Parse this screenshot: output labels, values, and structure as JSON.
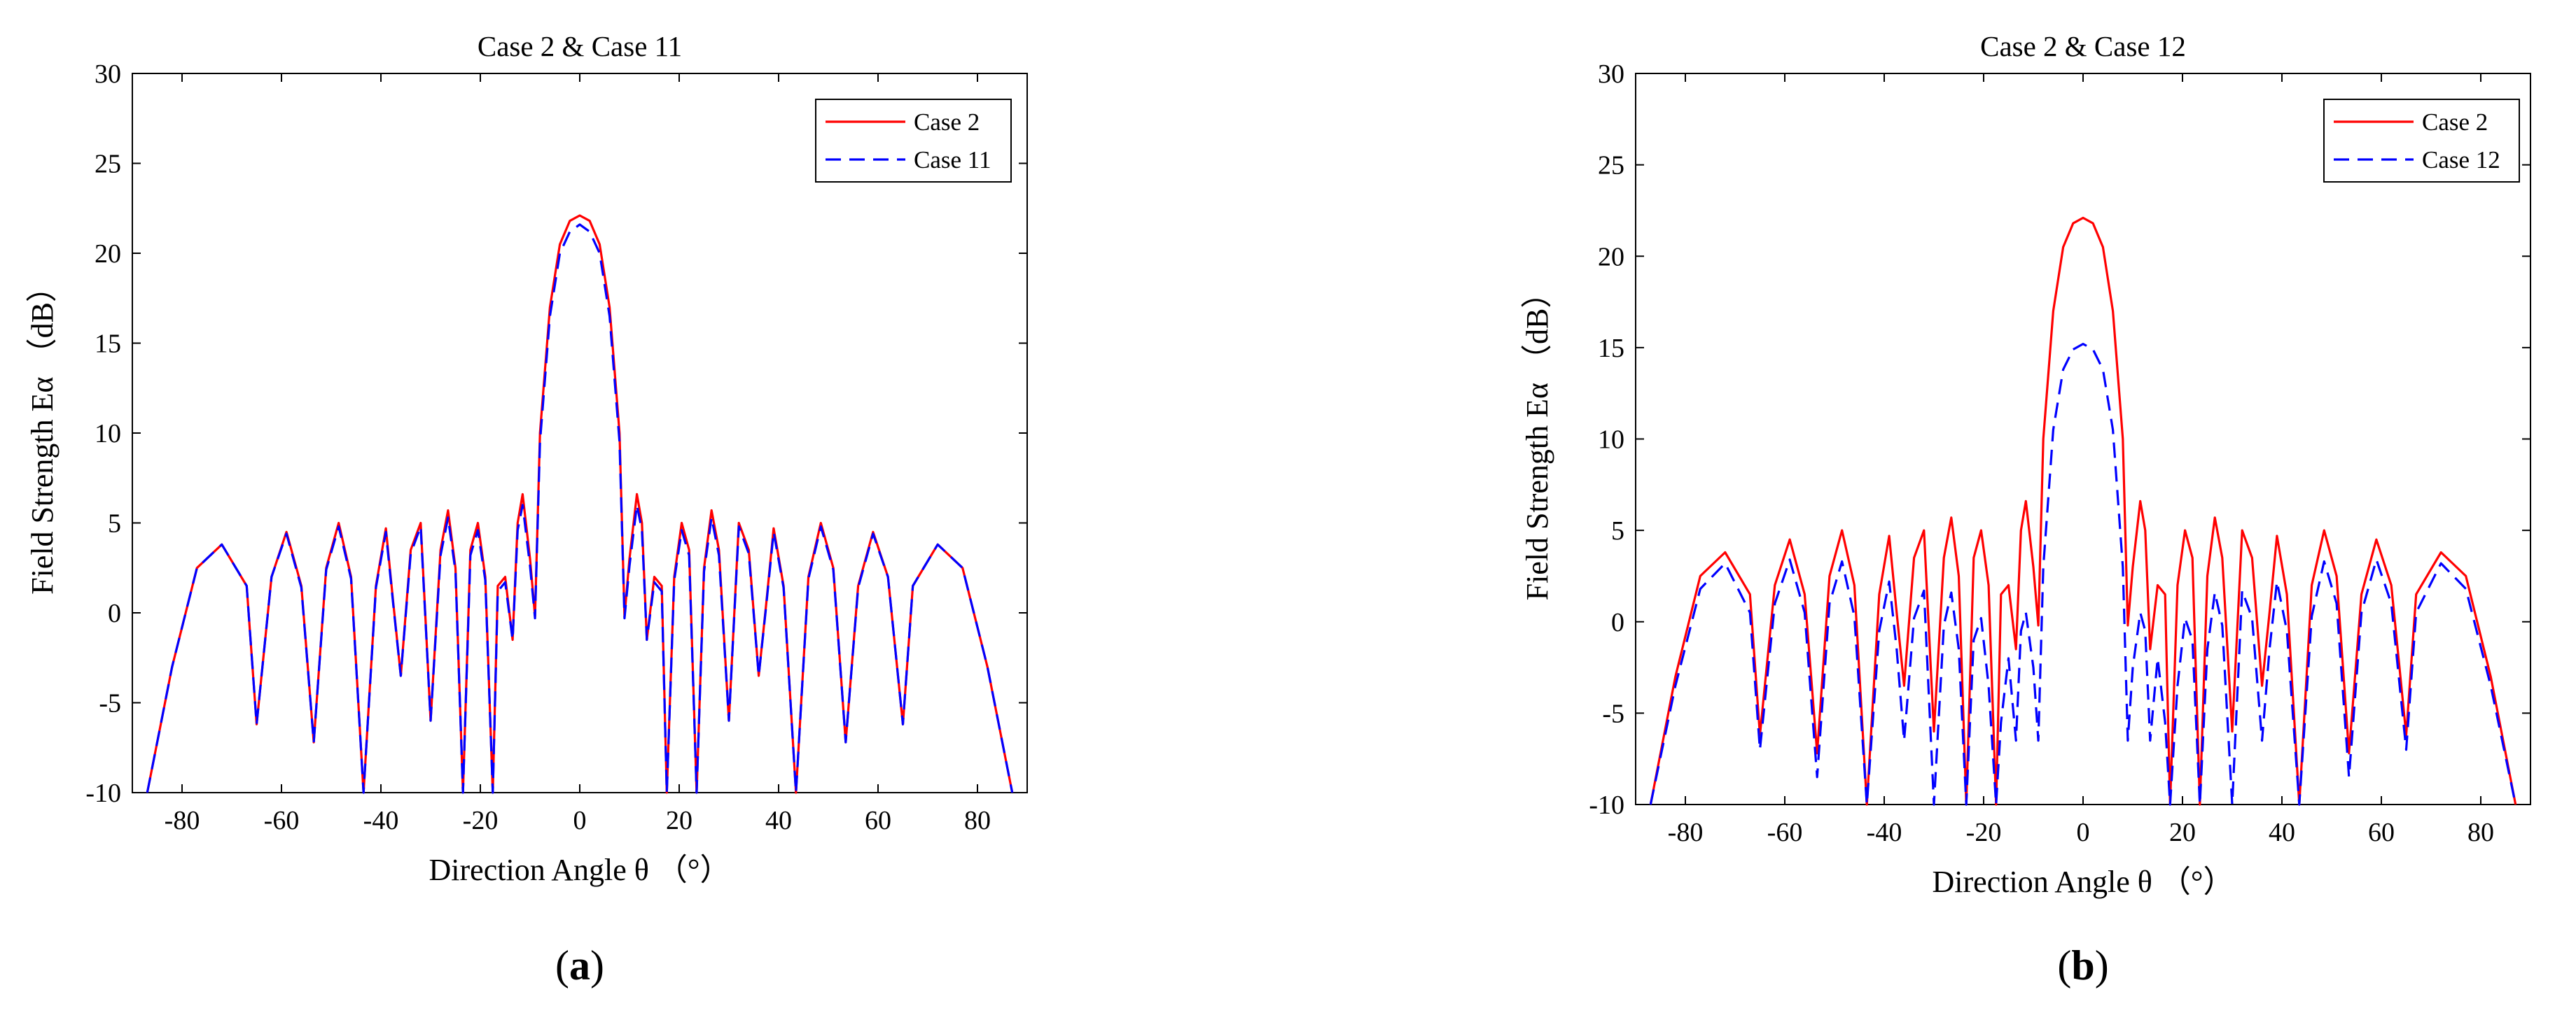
{
  "chart_data": [
    {
      "type": "line",
      "panel_label": "a",
      "title": "Case 2 & Case 11",
      "xlabel": "Direction Angle θ （°）",
      "ylabel": "Field Strength Eα （dB）",
      "xlim": [
        -90,
        90
      ],
      "ylim": [
        -10,
        30
      ],
      "xticks": [
        -80,
        -60,
        -40,
        -20,
        0,
        20,
        40,
        60,
        80
      ],
      "yticks": [
        -10,
        -5,
        0,
        5,
        10,
        15,
        20,
        25,
        30
      ],
      "grid": false,
      "legend_position": "top-right",
      "series": [
        {
          "name": "Case 2",
          "color": "#ff0000",
          "style": "solid",
          "x": [
            -87,
            -82,
            -77,
            -72,
            -67,
            -65,
            -62,
            -59,
            -56,
            -53.5,
            -51,
            -48.5,
            -46,
            -43.5,
            -41,
            -39,
            -37.5,
            -36,
            -34,
            -32,
            -30,
            -28,
            -26.5,
            -25,
            -23.5,
            -22,
            -20.5,
            -19,
            -17.5,
            -16.5,
            -15,
            -13.5,
            -12.5,
            -11.5,
            -10,
            -9,
            -8,
            -6,
            -4,
            -2,
            0,
            2,
            4,
            6,
            8,
            9,
            10,
            11.5,
            12.5,
            13.5,
            15,
            16.5,
            17.5,
            19,
            20.5,
            22,
            23.5,
            25,
            26.5,
            28,
            30,
            32,
            34,
            36,
            37.5,
            39,
            41,
            43.5,
            46,
            48.5,
            51,
            53.5,
            56,
            59,
            62,
            65,
            67,
            72,
            77,
            82,
            87
          ],
          "y": [
            -10,
            -3,
            2.5,
            3.8,
            1.5,
            -6.2,
            2.0,
            4.5,
            1.5,
            -7.2,
            2.5,
            5.0,
            2.0,
            -10,
            1.5,
            4.7,
            0.5,
            -3.5,
            3.5,
            5.0,
            -6.0,
            3.5,
            5.7,
            2.5,
            -10,
            3.5,
            5.0,
            2.0,
            -10,
            1.5,
            2.0,
            -1.5,
            5.0,
            6.6,
            3.0,
            -0.2,
            10,
            17,
            20.5,
            21.8,
            22.1,
            21.8,
            20.5,
            17,
            10,
            -0.2,
            3.0,
            6.6,
            5.0,
            -1.5,
            2.0,
            1.5,
            -10,
            2.0,
            5.0,
            3.5,
            -10,
            2.5,
            5.7,
            3.5,
            -6.0,
            5.0,
            3.5,
            -3.5,
            0.5,
            4.7,
            1.5,
            -10,
            2.0,
            5.0,
            2.5,
            -7.2,
            1.5,
            4.5,
            2.0,
            -6.2,
            1.5,
            3.8,
            2.5,
            -3,
            -10
          ]
        },
        {
          "name": "Case 11",
          "color": "#0000ff",
          "style": "dashed",
          "x": [
            -87,
            -82,
            -77,
            -72,
            -67,
            -65,
            -62,
            -59,
            -56,
            -53.5,
            -51,
            -48.5,
            -46,
            -43.5,
            -41,
            -39,
            -37.5,
            -36,
            -34,
            -32,
            -30,
            -28,
            -26.5,
            -25,
            -23.5,
            -22,
            -20.5,
            -19,
            -17.5,
            -16.5,
            -15,
            -13.5,
            -12.5,
            -11.5,
            -10,
            -9,
            -8,
            -6,
            -4,
            -2,
            0,
            2,
            4,
            6,
            8,
            9,
            10,
            11.5,
            12.5,
            13.5,
            15,
            16.5,
            17.5,
            19,
            20.5,
            22,
            23.5,
            25,
            26.5,
            28,
            30,
            32,
            34,
            36,
            37.5,
            39,
            41,
            43.5,
            46,
            48.5,
            51,
            53.5,
            56,
            59,
            62,
            65,
            67,
            72,
            77,
            82,
            87
          ],
          "y": [
            -10,
            -3,
            2.5,
            3.8,
            1.5,
            -6.2,
            2.0,
            4.4,
            1.4,
            -7.2,
            2.4,
            4.8,
            1.9,
            -10,
            1.4,
            4.5,
            0.4,
            -3.5,
            3.3,
            4.8,
            -6.0,
            3.2,
            5.3,
            2.3,
            -10,
            3.2,
            4.6,
            1.8,
            -10,
            1.2,
            1.7,
            -1.5,
            4.6,
            6.0,
            2.6,
            -0.3,
            9.5,
            16.5,
            20.0,
            21.2,
            21.6,
            21.2,
            20.0,
            16.5,
            9.5,
            -0.3,
            2.6,
            6.0,
            4.6,
            -1.5,
            1.7,
            1.2,
            -10,
            1.8,
            4.6,
            3.2,
            -10,
            2.3,
            5.3,
            3.2,
            -6.0,
            4.8,
            3.3,
            -3.5,
            0.4,
            4.5,
            1.4,
            -10,
            1.9,
            4.8,
            2.4,
            -7.2,
            1.4,
            4.4,
            2.0,
            -6.2,
            1.5,
            3.8,
            2.5,
            -3,
            -10
          ]
        }
      ]
    },
    {
      "type": "line",
      "panel_label": "b",
      "title": "Case 2 & Case 12",
      "xlabel": "Direction Angle θ （°）",
      "ylabel": "Field Strength Eα （dB）",
      "xlim": [
        -90,
        90
      ],
      "ylim": [
        -10,
        30
      ],
      "xticks": [
        -80,
        -60,
        -40,
        -20,
        0,
        20,
        40,
        60,
        80
      ],
      "yticks": [
        -10,
        -5,
        0,
        5,
        10,
        15,
        20,
        25,
        30
      ],
      "grid": false,
      "legend_position": "top-right",
      "series": [
        {
          "name": "Case 2",
          "color": "#ff0000",
          "style": "solid",
          "x": [
            -87,
            -82,
            -77,
            -72,
            -67,
            -65,
            -62,
            -59,
            -56,
            -53.5,
            -51,
            -48.5,
            -46,
            -43.5,
            -41,
            -39,
            -37.5,
            -36,
            -34,
            -32,
            -30,
            -28,
            -26.5,
            -25,
            -23.5,
            -22,
            -20.5,
            -19,
            -17.5,
            -16.5,
            -15,
            -13.5,
            -12.5,
            -11.5,
            -10,
            -9,
            -8,
            -6,
            -4,
            -2,
            0,
            2,
            4,
            6,
            8,
            9,
            10,
            11.5,
            12.5,
            13.5,
            15,
            16.5,
            17.5,
            19,
            20.5,
            22,
            23.5,
            25,
            26.5,
            28,
            30,
            32,
            34,
            36,
            37.5,
            39,
            41,
            43.5,
            46,
            48.5,
            51,
            53.5,
            56,
            59,
            62,
            65,
            67,
            72,
            77,
            82,
            87
          ],
          "y": [
            -10,
            -3,
            2.5,
            3.8,
            1.5,
            -6.2,
            2.0,
            4.5,
            1.5,
            -7.2,
            2.5,
            5.0,
            2.0,
            -10,
            1.5,
            4.7,
            0.5,
            -3.5,
            3.5,
            5.0,
            -6.0,
            3.5,
            5.7,
            2.5,
            -10,
            3.5,
            5.0,
            2.0,
            -10,
            1.5,
            2.0,
            -1.5,
            5.0,
            6.6,
            3.0,
            -0.2,
            10,
            17,
            20.5,
            21.8,
            22.1,
            21.8,
            20.5,
            17,
            10,
            -0.2,
            3.0,
            6.6,
            5.0,
            -1.5,
            2.0,
            1.5,
            -10,
            2.0,
            5.0,
            3.5,
            -10,
            2.5,
            5.7,
            3.5,
            -6.0,
            5.0,
            3.5,
            -3.5,
            0.5,
            4.7,
            1.5,
            -10,
            2.0,
            5.0,
            2.5,
            -7.2,
            1.5,
            4.5,
            2.0,
            -6.2,
            1.5,
            3.8,
            2.5,
            -3,
            -10
          ]
        },
        {
          "name": "Case 12",
          "color": "#0000ff",
          "style": "dashed",
          "x": [
            -87,
            -82,
            -77,
            -72,
            -67,
            -65,
            -62,
            -59,
            -56,
            -53.5,
            -51,
            -48.5,
            -46,
            -43.5,
            -41,
            -39,
            -37.5,
            -36,
            -34,
            -32,
            -30,
            -28,
            -26.5,
            -25,
            -23.5,
            -22,
            -20.5,
            -19,
            -17.5,
            -16.5,
            -15,
            -13.5,
            -12.5,
            -11.5,
            -10,
            -9,
            -8,
            -6,
            -4,
            -2,
            0,
            2,
            4,
            6,
            8,
            9,
            10,
            11.5,
            12.5,
            13.5,
            15,
            16.5,
            17.5,
            19,
            20.5,
            22,
            23.5,
            25,
            26.5,
            28,
            30,
            32,
            34,
            36,
            37.5,
            39,
            41,
            43.5,
            46,
            48.5,
            51,
            53.5,
            56,
            59,
            62,
            65,
            67,
            72,
            77,
            82,
            87
          ],
          "y": [
            -10,
            -3.5,
            1.8,
            3.2,
            0.5,
            -7.0,
            1.0,
            3.4,
            0.5,
            -8.5,
            1.0,
            3.3,
            0.3,
            -10,
            -0.5,
            2.2,
            -1.5,
            -6.5,
            0.2,
            1.7,
            -10,
            -0.2,
            1.6,
            -1.5,
            -10,
            -1.0,
            0.2,
            -3.5,
            -10,
            -5.5,
            -2.0,
            -6.5,
            -0.5,
            0.5,
            -2.5,
            -6.5,
            3.0,
            10.5,
            13.8,
            14.9,
            15.2,
            14.9,
            13.8,
            10.5,
            3.0,
            -6.5,
            -2.5,
            0.5,
            -0.5,
            -6.5,
            -2.0,
            -5.5,
            -10,
            -3.5,
            0.2,
            -1.0,
            -10,
            -1.5,
            1.6,
            -0.2,
            -10,
            1.7,
            0.2,
            -6.5,
            -1.5,
            2.2,
            -0.5,
            -10,
            0.3,
            3.3,
            1.0,
            -8.5,
            0.5,
            3.4,
            1.0,
            -7.0,
            0.5,
            3.2,
            1.8,
            -3.5,
            -10
          ]
        }
      ]
    }
  ]
}
